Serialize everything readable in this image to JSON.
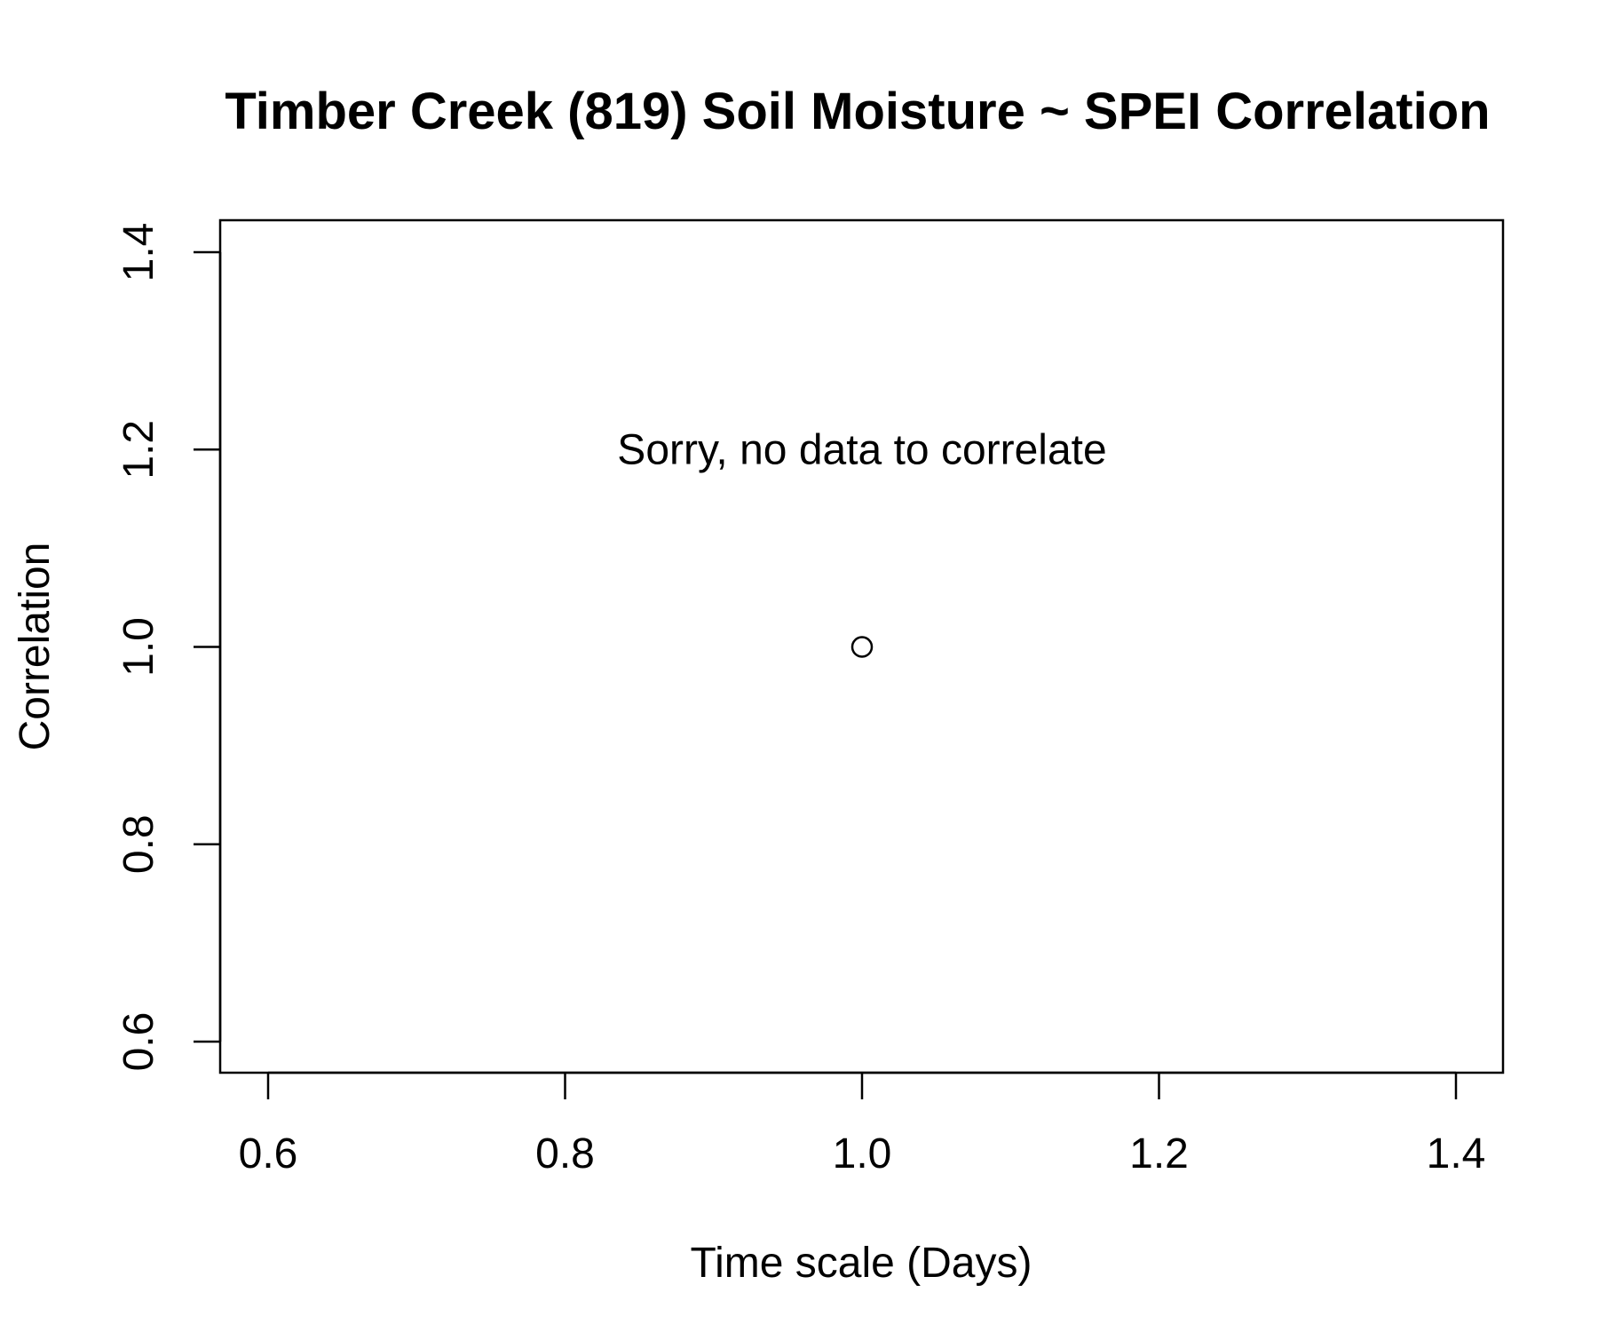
{
  "chart_data": {
    "type": "scatter",
    "title": "Timber Creek (819) Soil Moisture ~ SPEI Correlation",
    "xlabel": "Time scale (Days)",
    "ylabel": "Correlation",
    "xlim": [
      0.6,
      1.4
    ],
    "ylim": [
      0.6,
      1.4
    ],
    "x_ticks": [
      0.6,
      0.8,
      1.0,
      1.2,
      1.4
    ],
    "y_ticks": [
      0.6,
      0.8,
      1.0,
      1.2,
      1.4
    ],
    "x_tick_labels": [
      "0.6",
      "0.8",
      "1.0",
      "1.2",
      "1.4"
    ],
    "y_tick_labels": [
      "0.6",
      "0.8",
      "1.0",
      "1.2",
      "1.4"
    ],
    "grid": false,
    "legend": "none",
    "series": [
      {
        "points": [
          {
            "x": 1.0,
            "y": 1.0
          }
        ],
        "marker": "open-circle"
      }
    ],
    "annotations": [
      {
        "text": "Sorry, no data to correlate",
        "x": 1.0,
        "y": 1.2
      }
    ]
  }
}
